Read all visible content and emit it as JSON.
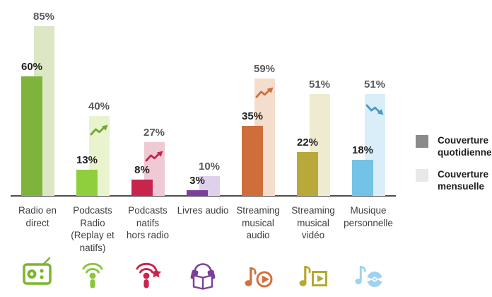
{
  "chart_data": {
    "type": "bar",
    "title": "",
    "unit": "%",
    "layout": "grouped-overlapping-pairs",
    "legend_position": "right",
    "axis": {
      "baseline_color": "#4d4d4d"
    },
    "label_colors": {
      "daily": "#1f1f1f",
      "monthly": "#58595b",
      "category": "#3f3f3f"
    },
    "legend": [
      {
        "name": "daily",
        "label": "Couverture quotidienne",
        "color": "#8a8a8a"
      },
      {
        "name": "monthly",
        "label": "Couverture mensuelle",
        "color": "#e8e8e8"
      }
    ],
    "series": [
      {
        "name": "Couverture quotidienne",
        "values": [
          60,
          13,
          8,
          3,
          35,
          22,
          18
        ]
      },
      {
        "name": "Couverture mensuelle",
        "values": [
          85,
          40,
          27,
          10,
          59,
          51,
          51
        ]
      }
    ],
    "categories": [
      {
        "label": "Radio en direct",
        "label_lines": [
          "Radio en",
          "direct"
        ],
        "icon": "radio-icon",
        "icon_color": "#7cb52e",
        "daily": 60,
        "monthly": 85,
        "daily_label": "60%",
        "monthly_label": "85%",
        "daily_color": "#7eb43c",
        "monthly_color": "#dce7c5",
        "trend": null,
        "trend_color": null
      },
      {
        "label": "Podcasts Radio (Replay et natifs)",
        "label_lines": [
          "Podcasts",
          "Radio",
          "(Replay et",
          "natifs)"
        ],
        "icon": "podcast-mic-icon",
        "icon_color": "#8cc63f",
        "daily": 13,
        "monthly": 40,
        "daily_label": "13%",
        "monthly_label": "40%",
        "daily_color": "#8fce3c",
        "monthly_color": "#e9f4cf",
        "trend": "up",
        "trend_color": "#71a830"
      },
      {
        "label": "Podcasts natifs hors radio",
        "label_lines": [
          "Podcasts",
          "natifs",
          "hors radio"
        ],
        "icon": "podcast-star-icon",
        "icon_color": "#c8254e",
        "daily": 8,
        "monthly": 27,
        "daily_label": "8%",
        "monthly_label": "27%",
        "daily_color": "#c8254e",
        "monthly_color": "#efc9d3",
        "trend": "up",
        "trend_color": "#c8254e"
      },
      {
        "label": "Livres audio",
        "label_lines": [
          "Livres audio"
        ],
        "icon": "audiobook-icon",
        "icon_color": "#7b3f9b",
        "daily": 3,
        "monthly": 10,
        "daily_label": "3%",
        "monthly_label": "10%",
        "daily_color": "#7b3f9b",
        "monthly_color": "#dfd0ec",
        "trend": null,
        "trend_color": null
      },
      {
        "label": "Streaming musical audio",
        "label_lines": [
          "Streaming",
          "musical",
          "audio"
        ],
        "icon": "streaming-audio-icon",
        "icon_color": "#d2703c",
        "daily": 35,
        "monthly": 59,
        "daily_label": "35%",
        "monthly_label": "59%",
        "daily_color": "#ce6f3b",
        "monthly_color": "#f5ddcd",
        "trend": "up",
        "trend_color": "#ce6f3b"
      },
      {
        "label": "Streaming musical vidéo",
        "label_lines": [
          "Streaming",
          "musical",
          "vidéo"
        ],
        "icon": "streaming-video-icon",
        "icon_color": "#b5a832",
        "daily": 22,
        "monthly": 51,
        "daily_label": "22%",
        "monthly_label": "51%",
        "daily_color": "#b8a93a",
        "monthly_color": "#efebd1",
        "trend": null,
        "trend_color": null
      },
      {
        "label": "Musique personnelle",
        "label_lines": [
          "Musique",
          "personnelle"
        ],
        "icon": "music-cd-icon",
        "icon_color": "#9fd2ee",
        "daily": 18,
        "monthly": 51,
        "daily_label": "18%",
        "monthly_label": "51%",
        "daily_color": "#74c3e6",
        "monthly_color": "#d9eef9",
        "trend": "down",
        "trend_color": "#4e97bf"
      }
    ]
  }
}
